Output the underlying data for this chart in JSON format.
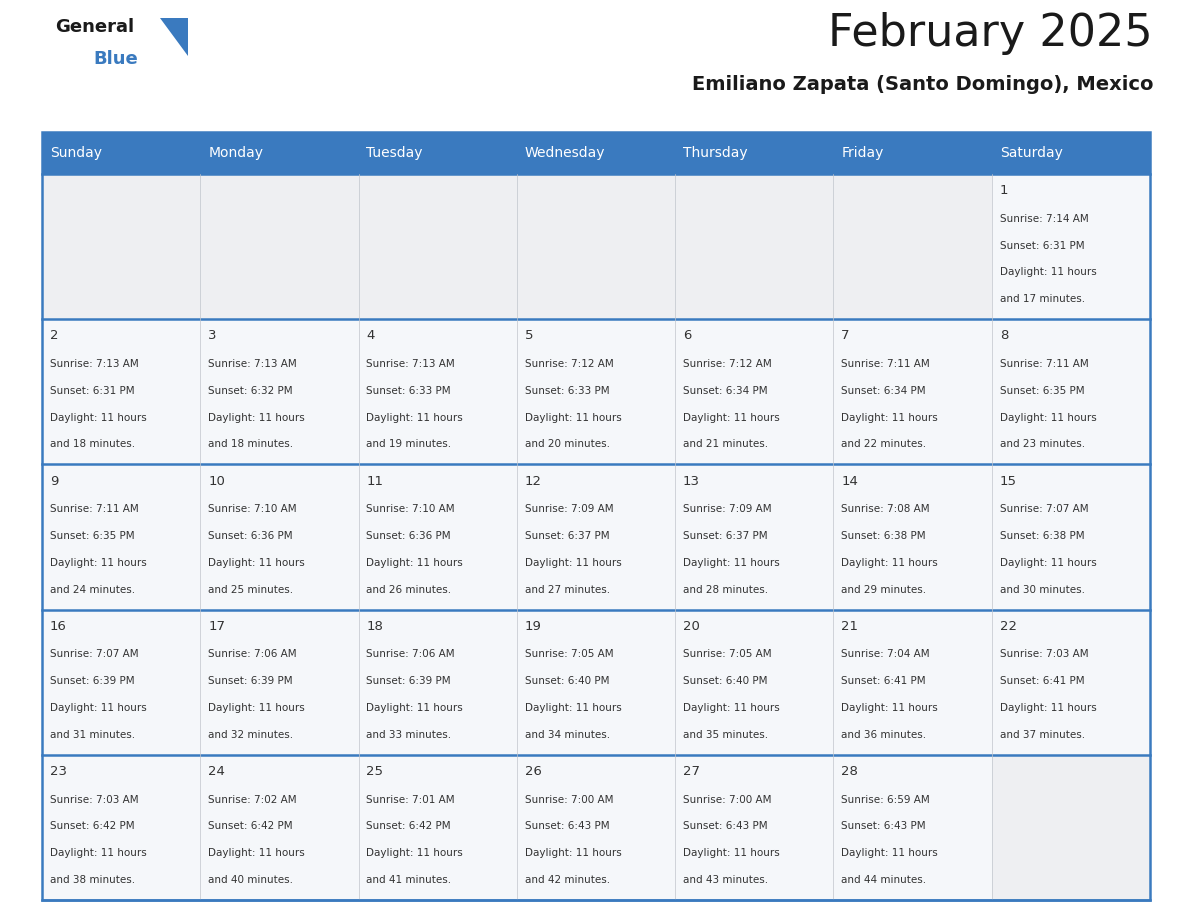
{
  "title": "February 2025",
  "subtitle": "Emiliano Zapata (Santo Domingo), Mexico",
  "header_bg": "#3a7abf",
  "header_text": "#ffffff",
  "cell_bg": "#f5f7fa",
  "border_color": "#3a7abf",
  "text_color": "#333333",
  "day_headers": [
    "Sunday",
    "Monday",
    "Tuesday",
    "Wednesday",
    "Thursday",
    "Friday",
    "Saturday"
  ],
  "calendar": [
    [
      null,
      null,
      null,
      null,
      null,
      null,
      {
        "day": "1",
        "sunrise": "7:14 AM",
        "sunset": "6:31 PM",
        "daylight_line1": "Daylight: 11 hours",
        "daylight_line2": "and 17 minutes."
      }
    ],
    [
      {
        "day": "2",
        "sunrise": "7:13 AM",
        "sunset": "6:31 PM",
        "daylight_line1": "Daylight: 11 hours",
        "daylight_line2": "and 18 minutes."
      },
      {
        "day": "3",
        "sunrise": "7:13 AM",
        "sunset": "6:32 PM",
        "daylight_line1": "Daylight: 11 hours",
        "daylight_line2": "and 18 minutes."
      },
      {
        "day": "4",
        "sunrise": "7:13 AM",
        "sunset": "6:33 PM",
        "daylight_line1": "Daylight: 11 hours",
        "daylight_line2": "and 19 minutes."
      },
      {
        "day": "5",
        "sunrise": "7:12 AM",
        "sunset": "6:33 PM",
        "daylight_line1": "Daylight: 11 hours",
        "daylight_line2": "and 20 minutes."
      },
      {
        "day": "6",
        "sunrise": "7:12 AM",
        "sunset": "6:34 PM",
        "daylight_line1": "Daylight: 11 hours",
        "daylight_line2": "and 21 minutes."
      },
      {
        "day": "7",
        "sunrise": "7:11 AM",
        "sunset": "6:34 PM",
        "daylight_line1": "Daylight: 11 hours",
        "daylight_line2": "and 22 minutes."
      },
      {
        "day": "8",
        "sunrise": "7:11 AM",
        "sunset": "6:35 PM",
        "daylight_line1": "Daylight: 11 hours",
        "daylight_line2": "and 23 minutes."
      }
    ],
    [
      {
        "day": "9",
        "sunrise": "7:11 AM",
        "sunset": "6:35 PM",
        "daylight_line1": "Daylight: 11 hours",
        "daylight_line2": "and 24 minutes."
      },
      {
        "day": "10",
        "sunrise": "7:10 AM",
        "sunset": "6:36 PM",
        "daylight_line1": "Daylight: 11 hours",
        "daylight_line2": "and 25 minutes."
      },
      {
        "day": "11",
        "sunrise": "7:10 AM",
        "sunset": "6:36 PM",
        "daylight_line1": "Daylight: 11 hours",
        "daylight_line2": "and 26 minutes."
      },
      {
        "day": "12",
        "sunrise": "7:09 AM",
        "sunset": "6:37 PM",
        "daylight_line1": "Daylight: 11 hours",
        "daylight_line2": "and 27 minutes."
      },
      {
        "day": "13",
        "sunrise": "7:09 AM",
        "sunset": "6:37 PM",
        "daylight_line1": "Daylight: 11 hours",
        "daylight_line2": "and 28 minutes."
      },
      {
        "day": "14",
        "sunrise": "7:08 AM",
        "sunset": "6:38 PM",
        "daylight_line1": "Daylight: 11 hours",
        "daylight_line2": "and 29 minutes."
      },
      {
        "day": "15",
        "sunrise": "7:07 AM",
        "sunset": "6:38 PM",
        "daylight_line1": "Daylight: 11 hours",
        "daylight_line2": "and 30 minutes."
      }
    ],
    [
      {
        "day": "16",
        "sunrise": "7:07 AM",
        "sunset": "6:39 PM",
        "daylight_line1": "Daylight: 11 hours",
        "daylight_line2": "and 31 minutes."
      },
      {
        "day": "17",
        "sunrise": "7:06 AM",
        "sunset": "6:39 PM",
        "daylight_line1": "Daylight: 11 hours",
        "daylight_line2": "and 32 minutes."
      },
      {
        "day": "18",
        "sunrise": "7:06 AM",
        "sunset": "6:39 PM",
        "daylight_line1": "Daylight: 11 hours",
        "daylight_line2": "and 33 minutes."
      },
      {
        "day": "19",
        "sunrise": "7:05 AM",
        "sunset": "6:40 PM",
        "daylight_line1": "Daylight: 11 hours",
        "daylight_line2": "and 34 minutes."
      },
      {
        "day": "20",
        "sunrise": "7:05 AM",
        "sunset": "6:40 PM",
        "daylight_line1": "Daylight: 11 hours",
        "daylight_line2": "and 35 minutes."
      },
      {
        "day": "21",
        "sunrise": "7:04 AM",
        "sunset": "6:41 PM",
        "daylight_line1": "Daylight: 11 hours",
        "daylight_line2": "and 36 minutes."
      },
      {
        "day": "22",
        "sunrise": "7:03 AM",
        "sunset": "6:41 PM",
        "daylight_line1": "Daylight: 11 hours",
        "daylight_line2": "and 37 minutes."
      }
    ],
    [
      {
        "day": "23",
        "sunrise": "7:03 AM",
        "sunset": "6:42 PM",
        "daylight_line1": "Daylight: 11 hours",
        "daylight_line2": "and 38 minutes."
      },
      {
        "day": "24",
        "sunrise": "7:02 AM",
        "sunset": "6:42 PM",
        "daylight_line1": "Daylight: 11 hours",
        "daylight_line2": "and 40 minutes."
      },
      {
        "day": "25",
        "sunrise": "7:01 AM",
        "sunset": "6:42 PM",
        "daylight_line1": "Daylight: 11 hours",
        "daylight_line2": "and 41 minutes."
      },
      {
        "day": "26",
        "sunrise": "7:00 AM",
        "sunset": "6:43 PM",
        "daylight_line1": "Daylight: 11 hours",
        "daylight_line2": "and 42 minutes."
      },
      {
        "day": "27",
        "sunrise": "7:00 AM",
        "sunset": "6:43 PM",
        "daylight_line1": "Daylight: 11 hours",
        "daylight_line2": "and 43 minutes."
      },
      {
        "day": "28",
        "sunrise": "6:59 AM",
        "sunset": "6:43 PM",
        "daylight_line1": "Daylight: 11 hours",
        "daylight_line2": "and 44 minutes."
      },
      null
    ]
  ],
  "n_rows": 5,
  "n_cols": 7,
  "title_fontsize": 32,
  "subtitle_fontsize": 14,
  "header_fontsize": 10,
  "day_num_fontsize": 9.5,
  "cell_text_fontsize": 7.5
}
